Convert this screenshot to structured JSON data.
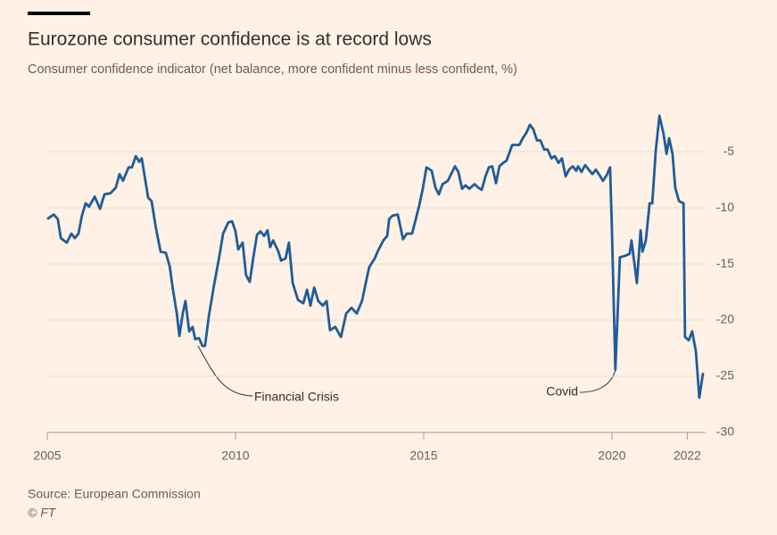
{
  "chart_data": {
    "type": "line",
    "title": "Eurozone consumer confidence is at record lows",
    "subtitle": "Consumer confidence indicator (net balance, more confident minus less confident, %)",
    "source": "Source: European Commission",
    "credit": "© FT",
    "annotations": [
      "Financial Crisis",
      "Covid"
    ],
    "x": [
      2005.0,
      2005.17,
      2005.28,
      2005.36,
      2005.52,
      2005.64,
      2005.73,
      2005.83,
      2005.92,
      2006.02,
      2006.11,
      2006.26,
      2006.4,
      2006.52,
      2006.68,
      2006.82,
      2006.92,
      2007.01,
      2007.16,
      2007.25,
      2007.35,
      2007.44,
      2007.51,
      2007.68,
      2007.77,
      2007.89,
      2008.01,
      2008.15,
      2008.25,
      2008.34,
      2008.44,
      2008.51,
      2008.6,
      2008.67,
      2008.77,
      2008.86,
      2008.93,
      2009.03,
      2009.12,
      2009.19,
      2009.29,
      2009.43,
      2009.57,
      2009.67,
      2009.81,
      2009.91,
      2010.0,
      2010.07,
      2010.19,
      2010.28,
      2010.38,
      2010.47,
      2010.57,
      2010.66,
      2010.76,
      2010.85,
      2010.92,
      2011.0,
      2011.14,
      2011.21,
      2011.33,
      2011.42,
      2011.52,
      2011.66,
      2011.8,
      2011.9,
      2011.99,
      2012.09,
      2012.2,
      2012.32,
      2012.42,
      2012.51,
      2012.65,
      2012.8,
      2012.94,
      2013.08,
      2013.22,
      2013.36,
      2013.46,
      2013.55,
      2013.7,
      2013.79,
      2013.93,
      2014.03,
      2014.08,
      2014.17,
      2014.31,
      2014.45,
      2014.55,
      2014.69,
      2014.79,
      2014.88,
      2014.98,
      2015.07,
      2015.21,
      2015.31,
      2015.4,
      2015.5,
      2015.64,
      2015.83,
      2015.92,
      2016.02,
      2016.11,
      2016.21,
      2016.35,
      2016.45,
      2016.54,
      2016.64,
      2016.73,
      2016.82,
      2016.92,
      2017.01,
      2017.11,
      2017.2,
      2017.35,
      2017.44,
      2017.54,
      2017.63,
      2017.73,
      2017.82,
      2017.91,
      2018.01,
      2018.1,
      2018.2,
      2018.29,
      2018.39,
      2018.48,
      2018.58,
      2018.67,
      2018.77,
      2018.86,
      2018.96,
      2019.05,
      2019.1,
      2019.19,
      2019.29,
      2019.38,
      2019.48,
      2019.57,
      2019.67,
      2019.76,
      2019.86,
      2019.95,
      2020.0,
      2020.09,
      2020.21,
      2020.33,
      2020.47,
      2020.52,
      2020.66,
      2020.76,
      2020.81,
      2020.9,
      2021.0,
      2021.07,
      2021.16,
      2021.26,
      2021.37,
      2021.45,
      2021.52,
      2021.61,
      2021.68,
      2021.78,
      2021.9,
      2021.94,
      2022.04,
      2022.13,
      2022.23,
      2022.32,
      2022.42
    ],
    "series": [
      {
        "name": "Consumer confidence",
        "color": "#1f5c99",
        "values": [
          -11.0,
          -10.6,
          -11.0,
          -12.7,
          -13.1,
          -12.3,
          -12.7,
          -12.3,
          -10.7,
          -9.6,
          -9.9,
          -9.0,
          -10.1,
          -8.8,
          -8.7,
          -8.2,
          -7.0,
          -7.6,
          -6.4,
          -6.4,
          -5.4,
          -5.9,
          -5.6,
          -9.1,
          -9.4,
          -11.9,
          -13.9,
          -14.0,
          -15.2,
          -17.3,
          -19.4,
          -21.4,
          -19.4,
          -18.3,
          -21.0,
          -20.6,
          -21.7,
          -21.6,
          -22.3,
          -22.3,
          -19.7,
          -16.9,
          -14.3,
          -12.3,
          -11.3,
          -11.2,
          -12.1,
          -13.7,
          -13.1,
          -16.0,
          -16.6,
          -14.5,
          -12.4,
          -12.1,
          -12.5,
          -12.0,
          -13.5,
          -12.9,
          -13.9,
          -14.7,
          -14.5,
          -13.1,
          -16.7,
          -18.2,
          -18.5,
          -17.3,
          -18.7,
          -17.1,
          -18.3,
          -18.7,
          -18.3,
          -20.9,
          -20.6,
          -21.5,
          -19.4,
          -18.9,
          -19.4,
          -18.3,
          -16.7,
          -15.3,
          -14.5,
          -13.8,
          -12.9,
          -12.5,
          -11.0,
          -10.7,
          -10.6,
          -12.8,
          -12.3,
          -12.3,
          -11.0,
          -9.8,
          -8.2,
          -6.4,
          -6.7,
          -8.2,
          -8.8,
          -7.9,
          -7.6,
          -6.3,
          -6.8,
          -8.3,
          -8.0,
          -8.3,
          -7.9,
          -8.2,
          -8.4,
          -7.2,
          -6.4,
          -6.3,
          -7.8,
          -6.3,
          -6.0,
          -5.8,
          -4.4,
          -4.4,
          -4.4,
          -3.8,
          -3.3,
          -2.6,
          -3.0,
          -4.0,
          -4.0,
          -4.8,
          -4.8,
          -5.6,
          -5.4,
          -6.0,
          -5.6,
          -7.2,
          -6.6,
          -6.3,
          -6.7,
          -6.3,
          -6.8,
          -6.2,
          -6.6,
          -7.0,
          -6.6,
          -7.1,
          -7.6,
          -7.1,
          -6.4,
          -12.1,
          -24.4,
          -14.4,
          -14.3,
          -14.1,
          -12.9,
          -16.7,
          -12.0,
          -13.9,
          -12.9,
          -9.6,
          -9.6,
          -5.0,
          -1.8,
          -3.4,
          -5.2,
          -3.8,
          -5.2,
          -8.2,
          -9.4,
          -9.6,
          -21.5,
          -21.8,
          -21.0,
          -22.8,
          -26.9,
          -24.7
        ]
      }
    ],
    "xlim": [
      2005,
      2022.5
    ],
    "xticks": [
      2005,
      2010,
      2015,
      2020,
      2022
    ],
    "ylim": [
      -30,
      -1.5
    ],
    "yticks": [
      -5,
      -10,
      -15,
      -20,
      -25,
      -30
    ],
    "grid": true
  }
}
